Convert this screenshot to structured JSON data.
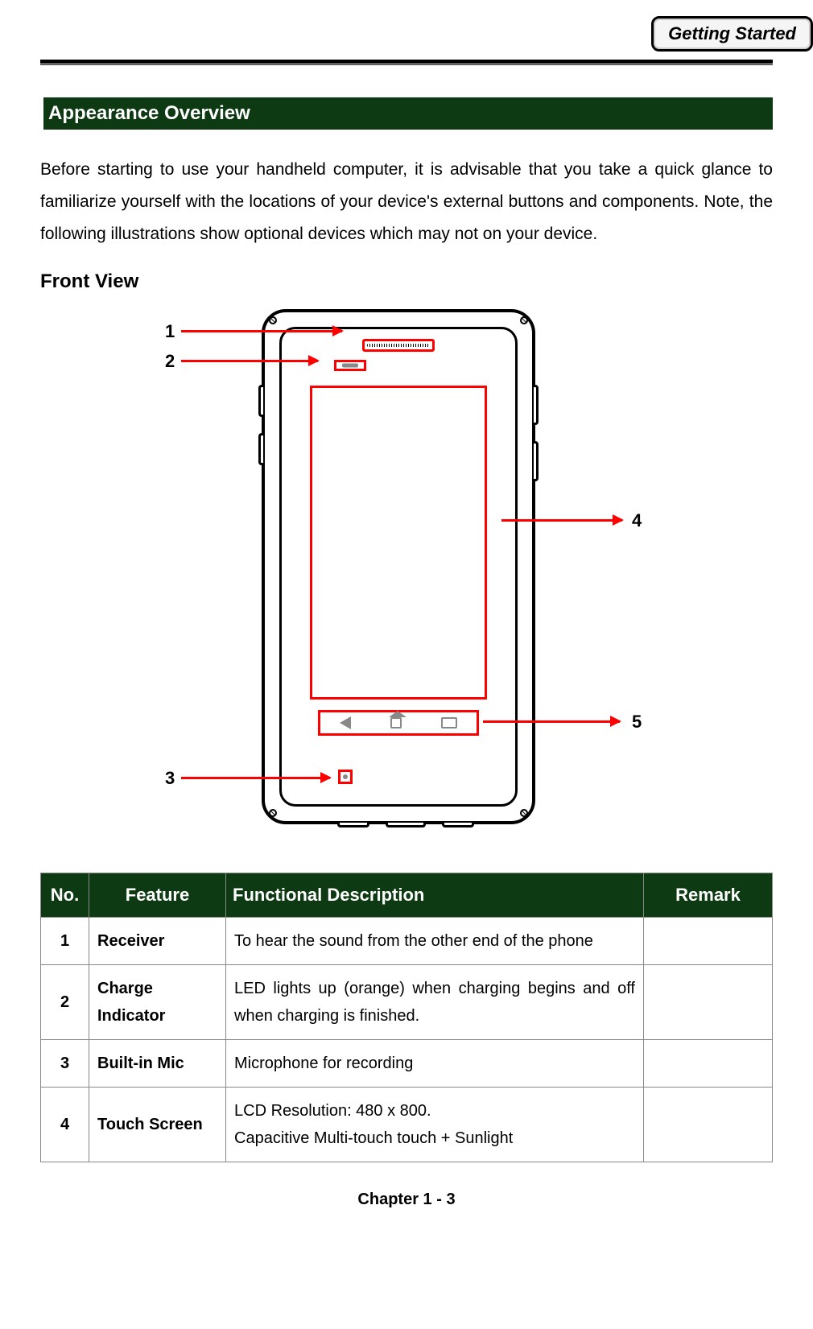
{
  "header": {
    "badge": "Getting Started"
  },
  "section": {
    "title": " Appearance Overview",
    "intro": "Before starting to use your handheld computer, it is advisable that you take a quick glance to familiarize yourself with the locations of your device's external buttons and components. Note, the following illustrations show optional devices which may not on your device.",
    "subheading": "Front View"
  },
  "callouts": {
    "c1": "1",
    "c2": "2",
    "c3": "3",
    "c4": "4",
    "c5": "5"
  },
  "colors": {
    "section_bg": "#0d3a12",
    "section_fg": "#ffffff",
    "callout_box": "#ff0000",
    "arrow": "#ff0000",
    "border": "#888888"
  },
  "table": {
    "headers": {
      "no": "No.",
      "feature": "Feature",
      "desc": "Functional Description",
      "remark": "Remark"
    },
    "rows": [
      {
        "no": "1",
        "feature": "Receiver",
        "desc": "To hear the sound from the other end of the phone",
        "remark": ""
      },
      {
        "no": "2",
        "feature": "Charge Indicator",
        "desc": "LED lights up (orange) when charging begins and off when charging is finished.",
        "remark": ""
      },
      {
        "no": "3",
        "feature": "Built-in Mic",
        "desc": "Microphone for recording",
        "remark": ""
      },
      {
        "no": "4",
        "feature": "Touch Screen",
        "desc": "LCD Resolution: 480 x 800.\nCapacitive Multi-touch touch + Sunlight",
        "remark": ""
      }
    ]
  },
  "footer": {
    "text": "Chapter 1 - 3"
  }
}
